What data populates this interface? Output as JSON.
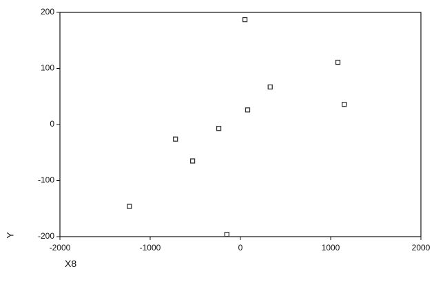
{
  "chart_data": {
    "type": "scatter",
    "x_label": "X8",
    "y_label": "Y",
    "x": [
      50,
      1080,
      330,
      1150,
      80,
      -240,
      -720,
      -530,
      -1230,
      -150
    ],
    "values": [
      187,
      111,
      67,
      36,
      26,
      -7,
      -26,
      -65,
      -146,
      -196
    ],
    "color": "#333333",
    "xlim": [
      -2000,
      2000
    ],
    "xticks": [
      -2000,
      -1000,
      0,
      1000,
      2000
    ],
    "ylim": [
      -200,
      200
    ],
    "yticks": [
      200,
      100,
      0,
      -100,
      -200
    ]
  }
}
